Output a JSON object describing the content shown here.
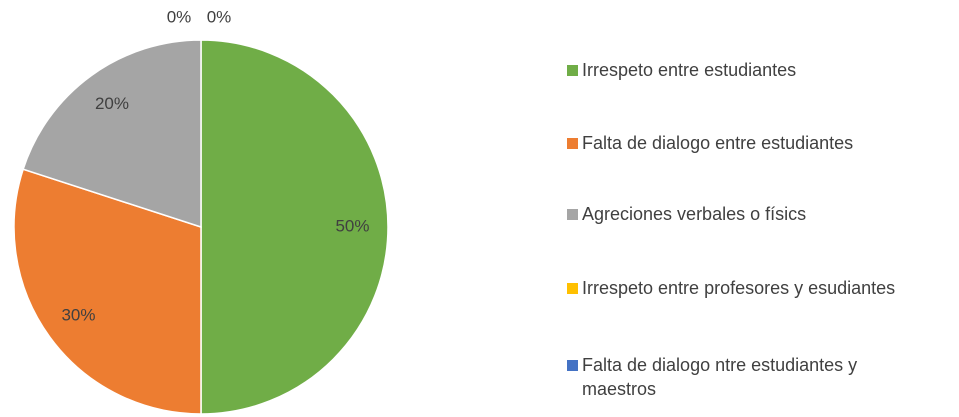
{
  "chart_data": {
    "type": "pie",
    "categories": [
      "Irrespeto entre estudiantes",
      "Falta de dialogo entre estudiantes",
      "Agreciones verbales o físics",
      "Irrespeto entre profesores y esudiantes",
      "Falta de dialogo ntre estudiantes y maestros"
    ],
    "values": [
      50,
      30,
      20,
      0,
      0
    ],
    "value_labels": [
      "50%",
      "30%",
      "20%",
      "0%",
      "0%"
    ],
    "colors": [
      "#70ad47",
      "#ed7d31",
      "#a5a5a5",
      "#ffc000",
      "#4472c4"
    ],
    "legend": "right"
  }
}
